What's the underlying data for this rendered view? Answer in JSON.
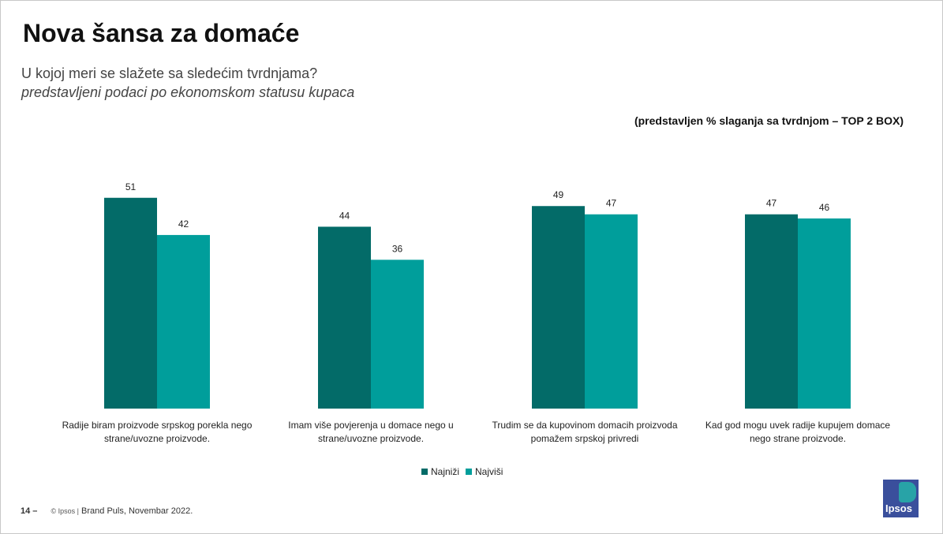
{
  "title": "Nova šansa za domaće",
  "subtitle": "U kojoj meri se slažete sa sledećim tvrdnjama?",
  "subtitle_italic": "predstavljeni podaci po ekonomskom statusu kupaca",
  "note": "(predstavljen % slaganja sa tvrdnjom – TOP 2 BOX)",
  "footer": {
    "page": "14 –",
    "copyright": "© Ipsos |",
    "source": "Brand Puls, Novembar 2022."
  },
  "logo": {
    "text": "Ipsos",
    "colors": {
      "primary": "#3a4f9c",
      "secondary": "#28a3a7"
    }
  },
  "chart_data": {
    "type": "bar",
    "categories": [
      [
        "Radije biram proizvode srpskog porekla nego",
        "strane/uvozne proizvode."
      ],
      [
        "Imam više povjerenja u domace nego u",
        "strane/uvozne proizvode."
      ],
      [
        "Trudim se da kupovinom domacih proizvoda",
        "pomažem srpskoj privredi"
      ],
      [
        "Kad god mogu uvek radije kupujem domace",
        "nego strane proizvode."
      ]
    ],
    "series": [
      {
        "name": "Najniži",
        "color": "#036b68",
        "values": [
          51,
          44,
          49,
          47
        ]
      },
      {
        "name": "Najviši",
        "color": "#009e9b",
        "values": [
          42,
          36,
          47,
          46
        ]
      }
    ],
    "data_labels": true,
    "legend_position": "bottom",
    "grid": false
  }
}
